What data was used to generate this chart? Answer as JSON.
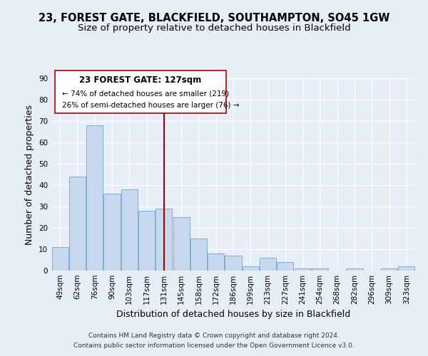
{
  "title": "23, FOREST GATE, BLACKFIELD, SOUTHAMPTON, SO45 1GW",
  "subtitle": "Size of property relative to detached houses in Blackfield",
  "xlabel": "Distribution of detached houses by size in Blackfield",
  "ylabel": "Number of detached properties",
  "bar_color": "#c8d8ee",
  "bar_edge_color": "#7bafd4",
  "categories": [
    "49sqm",
    "62sqm",
    "76sqm",
    "90sqm",
    "103sqm",
    "117sqm",
    "131sqm",
    "145sqm",
    "158sqm",
    "172sqm",
    "186sqm",
    "199sqm",
    "213sqm",
    "227sqm",
    "241sqm",
    "254sqm",
    "268sqm",
    "282sqm",
    "296sqm",
    "309sqm",
    "323sqm"
  ],
  "values": [
    11,
    44,
    68,
    36,
    38,
    28,
    29,
    25,
    15,
    8,
    7,
    2,
    6,
    4,
    1,
    1,
    0,
    1,
    0,
    1,
    2
  ],
  "vline_x": 6,
  "vline_color": "#aa0000",
  "annotation_title": "23 FOREST GATE: 127sqm",
  "annotation_line1": "← 74% of detached houses are smaller (219)",
  "annotation_line2": "26% of semi-detached houses are larger (76) →",
  "ylim": [
    0,
    90
  ],
  "yticks": [
    0,
    10,
    20,
    30,
    40,
    50,
    60,
    70,
    80,
    90
  ],
  "footer_line1": "Contains HM Land Registry data © Crown copyright and database right 2024.",
  "footer_line2": "Contains public sector information licensed under the Open Government Licence v3.0.",
  "background_color": "#e8eef8",
  "plot_bg_color": "#e8eef8",
  "title_fontsize": 10.5,
  "subtitle_fontsize": 9.5,
  "tick_fontsize": 7.5,
  "label_fontsize": 9,
  "footer_fontsize": 6.5
}
